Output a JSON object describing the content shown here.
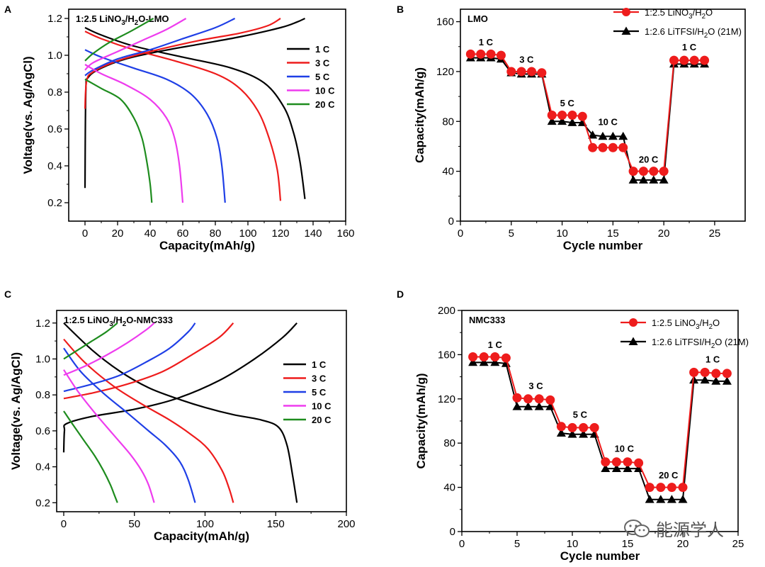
{
  "watermark": "能源学人",
  "chart_data": [
    {
      "panel": "A",
      "type": "line",
      "subtitle": "1:2.5 LiNO3/H2O-LMO",
      "xlabel": "Capacity(mAh/g)",
      "ylabel": "Voltage(vs. Ag/AgCl)",
      "xlim": [
        -10,
        160
      ],
      "ylim": [
        0.1,
        1.25
      ],
      "xticks": [
        0,
        20,
        40,
        60,
        80,
        100,
        120,
        140,
        160
      ],
      "yticks": [
        0.2,
        0.4,
        0.6,
        0.8,
        1.0,
        1.2
      ],
      "legend": "right",
      "series": [
        {
          "name": "1 C",
          "color": "#000000",
          "charge": [
            [
              0,
              0.28
            ],
            [
              0.5,
              0.8
            ],
            [
              2,
              0.88
            ],
            [
              10,
              0.93
            ],
            [
              25,
              0.98
            ],
            [
              45,
              1.02
            ],
            [
              70,
              1.06
            ],
            [
              95,
              1.1
            ],
            [
              120,
              1.15
            ],
            [
              130,
              1.18
            ],
            [
              135,
              1.2
            ]
          ],
          "discharge": [
            [
              0,
              1.15
            ],
            [
              10,
              1.11
            ],
            [
              30,
              1.05
            ],
            [
              60,
              0.99
            ],
            [
              90,
              0.93
            ],
            [
              110,
              0.85
            ],
            [
              122,
              0.72
            ],
            [
              128,
              0.58
            ],
            [
              132,
              0.42
            ],
            [
              135,
              0.22
            ]
          ]
        },
        {
          "name": "3 C",
          "color": "#ee1c1c",
          "charge": [
            [
              0,
              0.71
            ],
            [
              1,
              0.86
            ],
            [
              5,
              0.91
            ],
            [
              20,
              0.97
            ],
            [
              40,
              1.02
            ],
            [
              70,
              1.08
            ],
            [
              95,
              1.12
            ],
            [
              112,
              1.16
            ],
            [
              120,
              1.2
            ]
          ],
          "discharge": [
            [
              0,
              1.13
            ],
            [
              10,
              1.09
            ],
            [
              30,
              1.03
            ],
            [
              55,
              0.97
            ],
            [
              80,
              0.9
            ],
            [
              95,
              0.82
            ],
            [
              106,
              0.7
            ],
            [
              113,
              0.55
            ],
            [
              118,
              0.38
            ],
            [
              120,
              0.21
            ]
          ]
        },
        {
          "name": "5 C",
          "color": "#1f3fe6",
          "charge": [
            [
              0,
              0.89
            ],
            [
              5,
              0.92
            ],
            [
              20,
              0.98
            ],
            [
              40,
              1.03
            ],
            [
              60,
              1.09
            ],
            [
              80,
              1.15
            ],
            [
              92,
              1.2
            ]
          ],
          "discharge": [
            [
              0,
              1.03
            ],
            [
              10,
              0.99
            ],
            [
              30,
              0.93
            ],
            [
              50,
              0.87
            ],
            [
              65,
              0.79
            ],
            [
              75,
              0.68
            ],
            [
              81,
              0.55
            ],
            [
              84,
              0.4
            ],
            [
              86,
              0.2
            ]
          ]
        },
        {
          "name": "10 C",
          "color": "#ee3cee",
          "charge": [
            [
              0,
              0.92
            ],
            [
              5,
              0.96
            ],
            [
              20,
              1.02
            ],
            [
              35,
              1.08
            ],
            [
              50,
              1.14
            ],
            [
              62,
              1.2
            ]
          ],
          "discharge": [
            [
              0,
              0.95
            ],
            [
              10,
              0.9
            ],
            [
              25,
              0.84
            ],
            [
              40,
              0.76
            ],
            [
              50,
              0.66
            ],
            [
              55,
              0.55
            ],
            [
              58,
              0.4
            ],
            [
              60,
              0.2
            ]
          ]
        },
        {
          "name": "20 C",
          "color": "#1e8c1e",
          "charge": [
            [
              0,
              0.97
            ],
            [
              5,
              1.01
            ],
            [
              15,
              1.07
            ],
            [
              28,
              1.13
            ],
            [
              42,
              1.2
            ]
          ],
          "discharge": [
            [
              0,
              0.87
            ],
            [
              10,
              0.82
            ],
            [
              22,
              0.76
            ],
            [
              30,
              0.66
            ],
            [
              35,
              0.55
            ],
            [
              38,
              0.42
            ],
            [
              40,
              0.3
            ],
            [
              41,
              0.2
            ]
          ]
        }
      ]
    },
    {
      "panel": "B",
      "type": "line",
      "subtitle": "LMO",
      "xlabel": "Cycle number",
      "ylabel": "Capacity(mAh/g)",
      "xlim": [
        0,
        28
      ],
      "ylim": [
        0,
        170
      ],
      "xticks": [
        0,
        5,
        10,
        15,
        20,
        25
      ],
      "yticks": [
        0,
        40,
        80,
        120,
        160
      ],
      "legend": "top-right",
      "annotations": [
        {
          "text": "1 C",
          "x": 2.5,
          "y": 141
        },
        {
          "text": "3 C",
          "x": 6.5,
          "y": 127
        },
        {
          "text": "5 C",
          "x": 10.5,
          "y": 92
        },
        {
          "text": "10 C",
          "x": 14.5,
          "y": 77
        },
        {
          "text": "20 C",
          "x": 18.5,
          "y": 47
        },
        {
          "text": "1 C",
          "x": 22.5,
          "y": 137
        }
      ],
      "series": [
        {
          "name": "1:2.5 LiNO3/H2O",
          "color": "#ee1c1c",
          "marker": "circle",
          "x": [
            1,
            2,
            3,
            4,
            5,
            6,
            7,
            8,
            9,
            10,
            11,
            12,
            13,
            14,
            15,
            16,
            17,
            18,
            19,
            20,
            21,
            22,
            23,
            24
          ],
          "y": [
            134,
            134,
            134,
            133,
            120,
            120,
            120,
            119,
            85,
            85,
            85,
            84,
            59,
            59,
            59,
            59,
            40,
            40,
            40,
            40,
            129,
            129,
            129,
            129
          ]
        },
        {
          "name": "1:2.6 LiTFSI/H2O (21M)",
          "color": "#000000",
          "marker": "triangle",
          "x": [
            1,
            2,
            3,
            4,
            5,
            6,
            7,
            8,
            9,
            10,
            11,
            12,
            13,
            14,
            15,
            16,
            17,
            18,
            19,
            20,
            21,
            22,
            23,
            24
          ],
          "y": [
            131,
            131,
            131,
            130,
            119,
            118,
            118,
            118,
            80,
            80,
            79,
            79,
            69,
            68,
            68,
            68,
            33,
            33,
            33,
            33,
            126,
            126,
            126,
            126
          ]
        }
      ]
    },
    {
      "panel": "C",
      "type": "line",
      "subtitle": "1:2.5 LiNO3/H2O-NMC333",
      "xlabel": "Capacity(mAh/g)",
      "ylabel": "Voltage(vs. Ag/AgCl)",
      "xlim": [
        -5,
        200
      ],
      "ylim": [
        0.15,
        1.27
      ],
      "xticks": [
        0,
        50,
        100,
        150,
        200
      ],
      "yticks": [
        0.2,
        0.4,
        0.6,
        0.8,
        1.0,
        1.2
      ],
      "legend": "right",
      "series": [
        {
          "name": "1 C",
          "color": "#000000",
          "charge": [
            [
              0,
              0.48
            ],
            [
              0.5,
              0.6
            ],
            [
              2,
              0.64
            ],
            [
              20,
              0.68
            ],
            [
              50,
              0.72
            ],
            [
              80,
              0.78
            ],
            [
              110,
              0.88
            ],
            [
              135,
              1.0
            ],
            [
              155,
              1.12
            ],
            [
              165,
              1.2
            ]
          ],
          "discharge": [
            [
              0,
              1.2
            ],
            [
              20,
              1.05
            ],
            [
              40,
              0.93
            ],
            [
              60,
              0.84
            ],
            [
              80,
              0.78
            ],
            [
              100,
              0.73
            ],
            [
              120,
              0.69
            ],
            [
              140,
              0.66
            ],
            [
              152,
              0.62
            ],
            [
              158,
              0.52
            ],
            [
              162,
              0.35
            ],
            [
              165,
              0.2
            ]
          ]
        },
        {
          "name": "3 C",
          "color": "#ee1c1c",
          "charge": [
            [
              0,
              0.78
            ],
            [
              20,
              0.81
            ],
            [
              45,
              0.86
            ],
            [
              70,
              0.93
            ],
            [
              90,
              1.02
            ],
            [
              110,
              1.12
            ],
            [
              120,
              1.2
            ]
          ],
          "discharge": [
            [
              0,
              1.11
            ],
            [
              15,
              0.98
            ],
            [
              35,
              0.85
            ],
            [
              55,
              0.75
            ],
            [
              75,
              0.66
            ],
            [
              90,
              0.58
            ],
            [
              102,
              0.5
            ],
            [
              112,
              0.38
            ],
            [
              117,
              0.28
            ],
            [
              120,
              0.2
            ]
          ]
        },
        {
          "name": "5 C",
          "color": "#1f3fe6",
          "charge": [
            [
              0,
              0.82
            ],
            [
              20,
              0.86
            ],
            [
              40,
              0.91
            ],
            [
              60,
              0.99
            ],
            [
              75,
              1.06
            ],
            [
              88,
              1.15
            ],
            [
              93,
              1.2
            ]
          ],
          "discharge": [
            [
              0,
              1.06
            ],
            [
              12,
              0.93
            ],
            [
              28,
              0.81
            ],
            [
              45,
              0.7
            ],
            [
              60,
              0.6
            ],
            [
              72,
              0.52
            ],
            [
              82,
              0.43
            ],
            [
              88,
              0.33
            ],
            [
              93,
              0.2
            ]
          ]
        },
        {
          "name": "10 C",
          "color": "#ee3cee",
          "charge": [
            [
              0,
              0.91
            ],
            [
              15,
              0.96
            ],
            [
              30,
              1.02
            ],
            [
              45,
              1.09
            ],
            [
              58,
              1.16
            ],
            [
              64,
              1.2
            ]
          ],
          "discharge": [
            [
              0,
              0.94
            ],
            [
              10,
              0.82
            ],
            [
              22,
              0.7
            ],
            [
              35,
              0.58
            ],
            [
              47,
              0.47
            ],
            [
              55,
              0.38
            ],
            [
              60,
              0.3
            ],
            [
              64,
              0.2
            ]
          ]
        },
        {
          "name": "20 C",
          "color": "#1e8c1e",
          "charge": [
            [
              0,
              1.0
            ],
            [
              10,
              1.05
            ],
            [
              20,
              1.1
            ],
            [
              30,
              1.15
            ],
            [
              38,
              1.2
            ]
          ],
          "discharge": [
            [
              0,
              0.71
            ],
            [
              6,
              0.64
            ],
            [
              14,
              0.55
            ],
            [
              22,
              0.46
            ],
            [
              28,
              0.38
            ],
            [
              33,
              0.3
            ],
            [
              36,
              0.24
            ],
            [
              38,
              0.2
            ]
          ]
        }
      ]
    },
    {
      "panel": "D",
      "type": "line",
      "subtitle": "NMC333",
      "xlabel": "Cycle number",
      "ylabel": "Capacity(mAh/g)",
      "xlim": [
        0,
        25
      ],
      "ylim": [
        0,
        200
      ],
      "xticks": [
        0,
        5,
        10,
        15,
        20,
        25
      ],
      "yticks": [
        0,
        40,
        80,
        120,
        160,
        200
      ],
      "legend": "top-right",
      "annotations": [
        {
          "text": "1 C",
          "x": 3,
          "y": 166
        },
        {
          "text": "3 C",
          "x": 6.7,
          "y": 129
        },
        {
          "text": "5 C",
          "x": 10.7,
          "y": 103
        },
        {
          "text": "10 C",
          "x": 14.7,
          "y": 72
        },
        {
          "text": "20 C",
          "x": 18.7,
          "y": 48
        },
        {
          "text": "1 C",
          "x": 22.7,
          "y": 153
        }
      ],
      "series": [
        {
          "name": "1:2.5 LiNO3/H2O",
          "color": "#ee1c1c",
          "marker": "circle",
          "x": [
            1,
            2,
            3,
            4,
            5,
            6,
            7,
            8,
            9,
            10,
            11,
            12,
            13,
            14,
            15,
            16,
            17,
            18,
            19,
            20,
            21,
            22,
            23,
            24
          ],
          "y": [
            158,
            158,
            158,
            157,
            121,
            120,
            120,
            119,
            95,
            94,
            94,
            94,
            63,
            63,
            63,
            62,
            40,
            40,
            40,
            40,
            144,
            144,
            143,
            143
          ]
        },
        {
          "name": "1:2.6 LiTFSI/H2O (21M)",
          "color": "#000000",
          "marker": "triangle",
          "x": [
            1,
            2,
            3,
            4,
            5,
            6,
            7,
            8,
            9,
            10,
            11,
            12,
            13,
            14,
            15,
            16,
            17,
            18,
            19,
            20,
            21,
            22,
            23,
            24
          ],
          "y": [
            153,
            153,
            153,
            152,
            113,
            113,
            113,
            113,
            89,
            88,
            88,
            88,
            57,
            57,
            57,
            57,
            29,
            29,
            29,
            29,
            137,
            137,
            136,
            136
          ]
        }
      ]
    }
  ]
}
